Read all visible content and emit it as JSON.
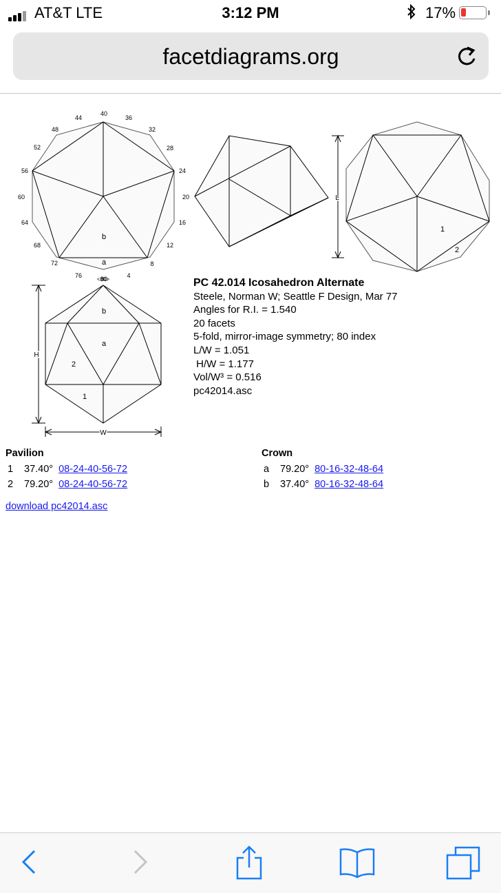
{
  "status": {
    "carrier": "AT&T  LTE",
    "time": "3:12 PM",
    "battery_pct": "17%",
    "bluetooth_icon": "bluetooth-icon",
    "battery_color": "#e8362e"
  },
  "browser": {
    "url": "facetdiagrams.org",
    "reload_icon": "reload-icon"
  },
  "diagram": {
    "index_labels": [
      "40",
      "36",
      "32",
      "28",
      "24",
      "20",
      "16",
      "12",
      "8",
      "4",
      "80",
      "76",
      "72",
      "68",
      "64",
      "60",
      "56",
      "52",
      "48",
      "44"
    ],
    "index_80_label": "<80>",
    "crown_labels": {
      "a": "a",
      "b": "b"
    },
    "pavilion_labels": {
      "p1": "1",
      "p2": "2"
    },
    "dim_labels": {
      "length": "L",
      "height": "H",
      "width": "W"
    }
  },
  "info": {
    "title": "PC 42.014 Icosahedron Alternate",
    "author": "Steele, Norman W; Seattle F Design, Mar 77",
    "angles": "Angles for R.I. = 1.540",
    "facets": "20 facets",
    "symmetry": "5-fold, mirror-image symmetry; 80 index",
    "lw": "L/W = 1.051",
    "hw": " H/W = 1.177",
    "vol": "Vol/W³ = 0.516",
    "file": "pc42014.asc"
  },
  "pavilion": {
    "heading": "Pavilion",
    "rows": [
      {
        "id": "1",
        "angle": "37.40°",
        "indexes": "08-24-40-56-72"
      },
      {
        "id": "2",
        "angle": "79.20°",
        "indexes": "08-24-40-56-72"
      }
    ]
  },
  "crown": {
    "heading": "Crown",
    "rows": [
      {
        "id": "a",
        "angle": "79.20°",
        "indexes": "80-16-32-48-64"
      },
      {
        "id": "b",
        "angle": "37.40°",
        "indexes": "80-16-32-48-64"
      }
    ]
  },
  "download_link": "download pc42014.asc",
  "toolbar": {
    "icons": [
      "back-icon",
      "forward-icon",
      "share-icon",
      "bookmarks-icon",
      "tabs-icon"
    ]
  }
}
